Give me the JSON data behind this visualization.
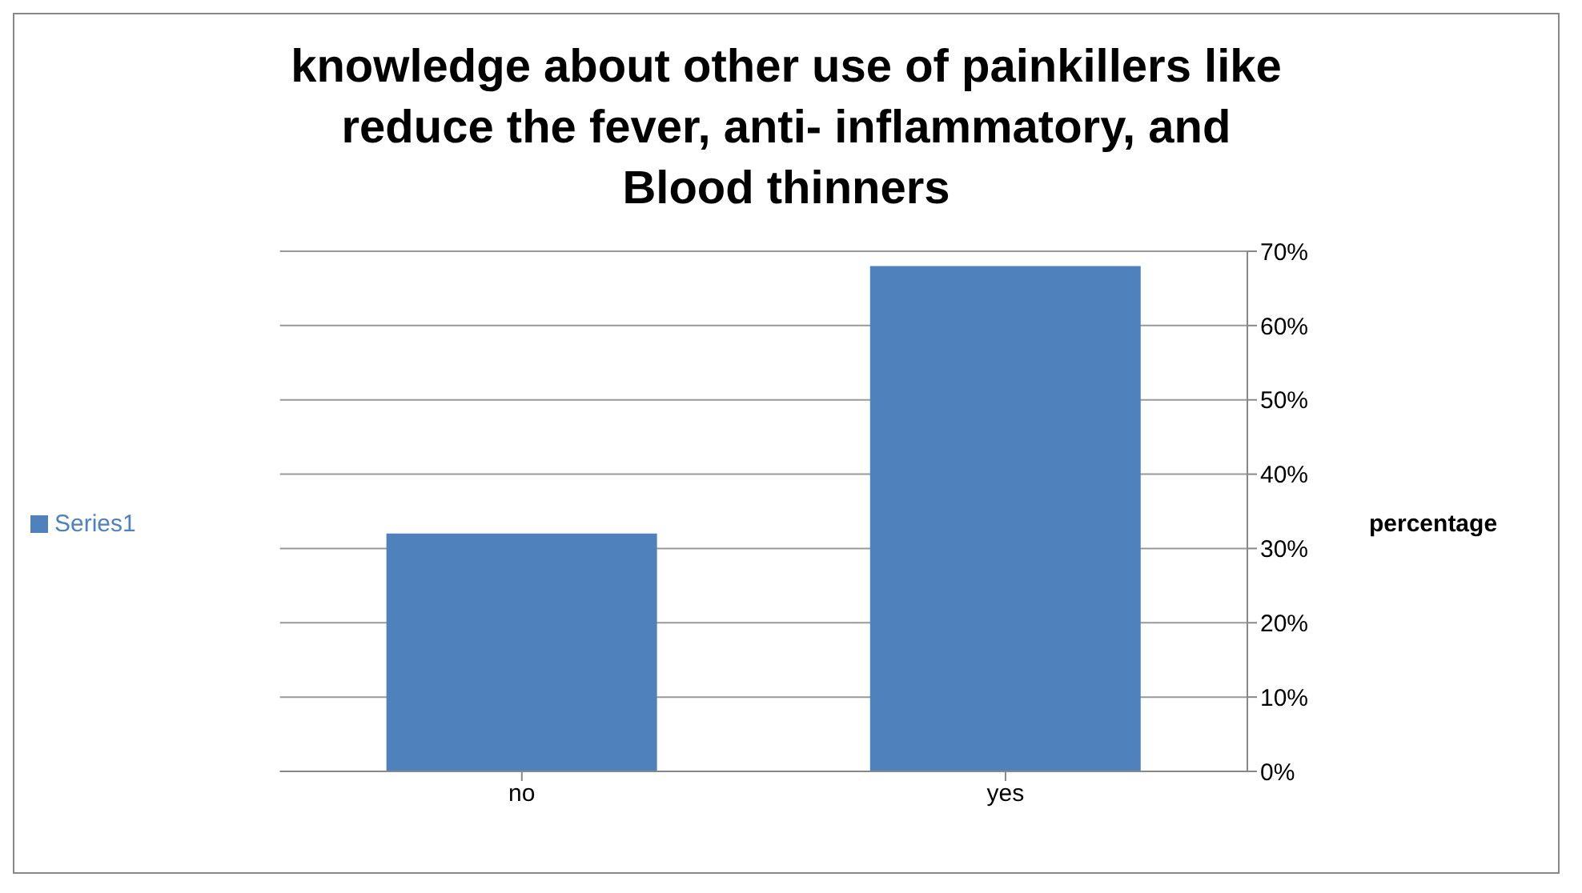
{
  "chart_data": {
    "type": "bar",
    "title": "knowledge about other use of painkillers like reduce the fever, anti- inflammatory, and Blood thinners",
    "categories": [
      "no",
      "yes"
    ],
    "series": [
      {
        "name": "Series1",
        "color": "#4f81bd",
        "values": [
          32,
          68
        ]
      }
    ],
    "ylabel": "percentage",
    "ylim": [
      0,
      70
    ],
    "yticks": [
      {
        "value": 0,
        "label": "0%"
      },
      {
        "value": 10,
        "label": "10%"
      },
      {
        "value": 20,
        "label": "20%"
      },
      {
        "value": 30,
        "label": "30%"
      },
      {
        "value": 40,
        "label": "40%"
      },
      {
        "value": 50,
        "label": "50%"
      },
      {
        "value": 60,
        "label": "60%"
      },
      {
        "value": 70,
        "label": "70%"
      }
    ],
    "grid": "y",
    "legend": "left"
  }
}
